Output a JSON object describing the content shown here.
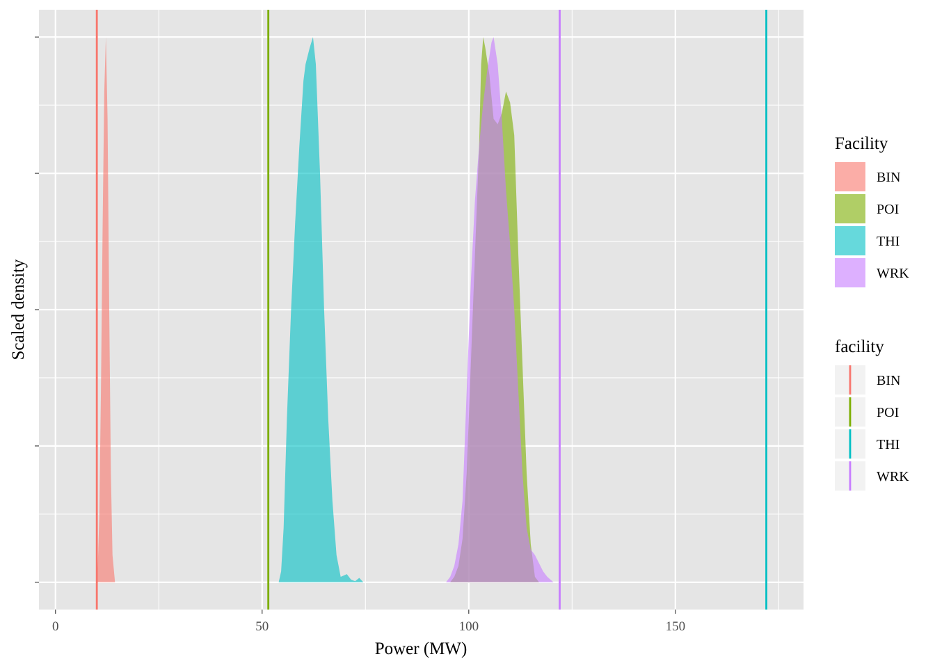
{
  "chart_data": {
    "type": "area",
    "subtype": "density",
    "title": "",
    "xlabel": "Power (MW)",
    "ylabel": "Scaled density",
    "xlim": [
      -4,
      181
    ],
    "ylim": [
      -0.05,
      1.05
    ],
    "x_ticks": [
      0,
      50,
      100,
      150
    ],
    "x_tick_labels": [
      "0",
      "50",
      "100",
      "150"
    ],
    "y_ticks_labeled": false,
    "grid": true,
    "background": "#e5e5e5",
    "legend_position": "right",
    "legends": [
      {
        "title": "Facility",
        "kind": "fill",
        "entries": [
          "BIN",
          "POI",
          "THI",
          "WRK"
        ]
      },
      {
        "title": "facility",
        "kind": "line",
        "entries": [
          "BIN",
          "POI",
          "THI",
          "WRK"
        ]
      }
    ],
    "colors": {
      "BIN": "#F8766D",
      "POI": "#7CAE00",
      "THI": "#00BFC4",
      "WRK": "#C77CFF"
    },
    "fill_alpha": 0.6,
    "vlines": [
      {
        "facility": "BIN",
        "x": 10
      },
      {
        "facility": "POI",
        "x": 51.5
      },
      {
        "facility": "THI",
        "x": 172
      },
      {
        "facility": "WRK",
        "x": 122
      }
    ],
    "series": [
      {
        "name": "BIN",
        "points": [
          [
            9.8,
            0
          ],
          [
            10.2,
            0.02
          ],
          [
            10.6,
            0.12
          ],
          [
            11.0,
            0.35
          ],
          [
            11.4,
            0.65
          ],
          [
            11.8,
            0.9
          ],
          [
            12.2,
            1.0
          ],
          [
            12.6,
            0.85
          ],
          [
            13.0,
            0.5
          ],
          [
            13.4,
            0.2
          ],
          [
            13.8,
            0.05
          ],
          [
            14.4,
            0
          ]
        ]
      },
      {
        "name": "THI",
        "points": [
          [
            54.0,
            0
          ],
          [
            54.6,
            0.02
          ],
          [
            55.2,
            0.1
          ],
          [
            56.0,
            0.3
          ],
          [
            57.0,
            0.5
          ],
          [
            58.0,
            0.66
          ],
          [
            59.0,
            0.8
          ],
          [
            60.0,
            0.92
          ],
          [
            60.5,
            0.95
          ],
          [
            61.5,
            0.98
          ],
          [
            62.3,
            1.0
          ],
          [
            63.0,
            0.95
          ],
          [
            64.0,
            0.75
          ],
          [
            65.0,
            0.5
          ],
          [
            66.0,
            0.3
          ],
          [
            67.0,
            0.15
          ],
          [
            68.0,
            0.05
          ],
          [
            69.0,
            0.01
          ],
          [
            70.5,
            0.015
          ],
          [
            71.5,
            0.005
          ],
          [
            72.5,
            0.002
          ],
          [
            73.5,
            0.008
          ],
          [
            74.5,
            0
          ]
        ]
      },
      {
        "name": "POI",
        "points": [
          [
            95.5,
            0
          ],
          [
            96.5,
            0.01
          ],
          [
            97.5,
            0.03
          ],
          [
            98.5,
            0.08
          ],
          [
            99.5,
            0.2
          ],
          [
            100.5,
            0.4
          ],
          [
            101.5,
            0.6
          ],
          [
            102.5,
            0.8
          ],
          [
            103.0,
            0.95
          ],
          [
            103.5,
            1.0
          ],
          [
            104.0,
            0.98
          ],
          [
            105.0,
            0.93
          ],
          [
            106.0,
            0.85
          ],
          [
            107.0,
            0.84
          ],
          [
            108.0,
            0.86
          ],
          [
            109.0,
            0.9
          ],
          [
            110.0,
            0.88
          ],
          [
            111.0,
            0.82
          ],
          [
            112.0,
            0.6
          ],
          [
            113.0,
            0.4
          ],
          [
            114.0,
            0.2
          ],
          [
            115.0,
            0.07
          ],
          [
            116.0,
            0.01
          ],
          [
            117.0,
            0
          ]
        ]
      },
      {
        "name": "WRK",
        "points": [
          [
            94.5,
            0
          ],
          [
            95.5,
            0.01
          ],
          [
            96.5,
            0.03
          ],
          [
            97.5,
            0.07
          ],
          [
            98.5,
            0.15
          ],
          [
            99.5,
            0.35
          ],
          [
            100.5,
            0.55
          ],
          [
            101.5,
            0.7
          ],
          [
            102.5,
            0.8
          ],
          [
            103.5,
            0.88
          ],
          [
            104.5,
            0.94
          ],
          [
            105.5,
            0.99
          ],
          [
            106.0,
            1.0
          ],
          [
            107.0,
            0.95
          ],
          [
            108.0,
            0.85
          ],
          [
            109.0,
            0.72
          ],
          [
            110.0,
            0.62
          ],
          [
            111.0,
            0.5
          ],
          [
            112.0,
            0.35
          ],
          [
            113.0,
            0.2
          ],
          [
            114.0,
            0.1
          ],
          [
            115.0,
            0.06
          ],
          [
            116.0,
            0.05
          ],
          [
            117.0,
            0.035
          ],
          [
            118.0,
            0.02
          ],
          [
            119.0,
            0.01
          ],
          [
            120.5,
            0
          ]
        ]
      }
    ]
  }
}
